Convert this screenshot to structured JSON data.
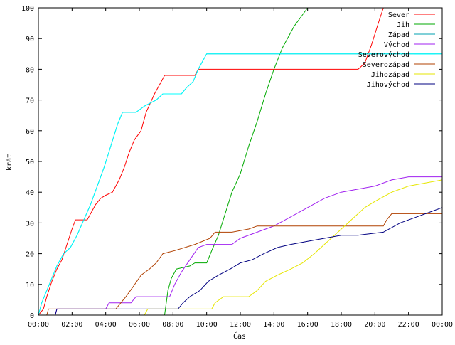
{
  "chart_data": {
    "type": "line",
    "title": "",
    "xlabel": "Čas",
    "ylabel": "krát",
    "xlim": [
      0,
      24
    ],
    "ylim": [
      0,
      100
    ],
    "x_ticks": [
      {
        "value": 0,
        "label": "00:00"
      },
      {
        "value": 2,
        "label": "02:00"
      },
      {
        "value": 4,
        "label": "04:00"
      },
      {
        "value": 6,
        "label": "06:00"
      },
      {
        "value": 8,
        "label": "08:00"
      },
      {
        "value": 10,
        "label": "10:00"
      },
      {
        "value": 12,
        "label": "12:00"
      },
      {
        "value": 14,
        "label": "14:00"
      },
      {
        "value": 16,
        "label": "16:00"
      },
      {
        "value": 18,
        "label": "18:00"
      },
      {
        "value": 20,
        "label": "20:00"
      },
      {
        "value": 22,
        "label": "22:00"
      },
      {
        "value": 24,
        "label": "00:00"
      }
    ],
    "y_ticks": [
      {
        "value": 0,
        "label": "0"
      },
      {
        "value": 10,
        "label": "10"
      },
      {
        "value": 20,
        "label": "20"
      },
      {
        "value": 30,
        "label": "30"
      },
      {
        "value": 40,
        "label": "40"
      },
      {
        "value": 50,
        "label": "50"
      },
      {
        "value": 60,
        "label": "60"
      },
      {
        "value": 70,
        "label": "70"
      },
      {
        "value": 80,
        "label": "80"
      },
      {
        "value": 90,
        "label": "90"
      },
      {
        "value": 100,
        "label": "100"
      }
    ],
    "grid": false,
    "legend_position": "top-right",
    "series": [
      {
        "name": "Sever",
        "color": "#ff0000",
        "points": [
          [
            0,
            0
          ],
          [
            0.3,
            2
          ],
          [
            0.5,
            6
          ],
          [
            0.8,
            11
          ],
          [
            1.1,
            15
          ],
          [
            1.4,
            18
          ],
          [
            1.7,
            23
          ],
          [
            2.0,
            28
          ],
          [
            2.2,
            31
          ],
          [
            2.9,
            31
          ],
          [
            3.1,
            33
          ],
          [
            3.4,
            36
          ],
          [
            3.7,
            38
          ],
          [
            4.0,
            39
          ],
          [
            4.4,
            40
          ],
          [
            4.8,
            44
          ],
          [
            5.1,
            48
          ],
          [
            5.4,
            53
          ],
          [
            5.7,
            57
          ],
          [
            6.1,
            60
          ],
          [
            6.4,
            66
          ],
          [
            6.9,
            72
          ],
          [
            7.3,
            76
          ],
          [
            7.5,
            78
          ],
          [
            9.3,
            78
          ],
          [
            9.5,
            80
          ],
          [
            19.0,
            80
          ],
          [
            19.4,
            82
          ],
          [
            19.8,
            88
          ],
          [
            20.2,
            95
          ],
          [
            20.5,
            100
          ]
        ]
      },
      {
        "name": "Jih",
        "color": "#00aa00",
        "points": [
          [
            0,
            0
          ],
          [
            7.5,
            0
          ],
          [
            7.7,
            8
          ],
          [
            7.9,
            12
          ],
          [
            8.2,
            15
          ],
          [
            9.0,
            16
          ],
          [
            9.3,
            17
          ],
          [
            10.0,
            17
          ],
          [
            10.3,
            21
          ],
          [
            10.7,
            26
          ],
          [
            11.1,
            33
          ],
          [
            11.5,
            40
          ],
          [
            12.0,
            46
          ],
          [
            12.5,
            55
          ],
          [
            13.0,
            63
          ],
          [
            13.5,
            72
          ],
          [
            14.0,
            80
          ],
          [
            14.5,
            87
          ],
          [
            14.8,
            90
          ],
          [
            15.2,
            94
          ],
          [
            15.6,
            97
          ],
          [
            16.0,
            100
          ]
        ]
      },
      {
        "name": "Západ",
        "color": "#00a0b0",
        "points": [
          [
            0,
            0
          ],
          [
            0.2,
            4
          ],
          [
            0.5,
            8
          ],
          [
            0.8,
            12
          ],
          [
            1.1,
            16
          ],
          [
            1.5,
            20
          ],
          [
            1.9,
            22
          ],
          [
            2.3,
            26
          ],
          [
            2.7,
            31
          ],
          [
            3.1,
            36
          ],
          [
            3.5,
            42
          ],
          [
            3.9,
            48
          ],
          [
            4.3,
            55
          ],
          [
            4.7,
            62
          ],
          [
            5.0,
            66
          ],
          [
            5.8,
            66
          ],
          [
            6.3,
            68
          ],
          [
            7.0,
            70
          ],
          [
            7.4,
            72
          ],
          [
            8.5,
            72
          ],
          [
            8.8,
            74
          ],
          [
            9.2,
            76
          ],
          [
            9.5,
            80
          ],
          [
            9.8,
            83
          ],
          [
            10.0,
            85
          ],
          [
            24,
            85
          ]
        ]
      },
      {
        "name": "Východ",
        "color": "#a020f0",
        "points": [
          [
            0,
            0
          ],
          [
            1.0,
            0
          ],
          [
            1.1,
            2
          ],
          [
            4.0,
            2
          ],
          [
            4.2,
            4
          ],
          [
            5.5,
            4
          ],
          [
            5.8,
            6
          ],
          [
            7.8,
            6
          ],
          [
            8.1,
            10
          ],
          [
            8.5,
            14
          ],
          [
            9.0,
            18
          ],
          [
            9.5,
            22
          ],
          [
            10.0,
            23
          ],
          [
            11.5,
            23
          ],
          [
            12.0,
            25
          ],
          [
            13.0,
            27
          ],
          [
            14.0,
            29
          ],
          [
            15.0,
            32
          ],
          [
            16.0,
            35
          ],
          [
            17.0,
            38
          ],
          [
            18.0,
            40
          ],
          [
            19.0,
            41
          ],
          [
            20.0,
            42
          ],
          [
            21.0,
            44
          ],
          [
            22.0,
            45
          ],
          [
            24,
            45
          ]
        ]
      },
      {
        "name": "Severovýchod",
        "color": "#00ffff",
        "points": [
          [
            0,
            0
          ],
          [
            0.2,
            4
          ],
          [
            0.5,
            8
          ],
          [
            0.8,
            12
          ],
          [
            1.1,
            16
          ],
          [
            1.5,
            20
          ],
          [
            1.9,
            22
          ],
          [
            2.3,
            26
          ],
          [
            2.7,
            31
          ],
          [
            3.1,
            36
          ],
          [
            3.5,
            42
          ],
          [
            3.9,
            48
          ],
          [
            4.3,
            55
          ],
          [
            4.7,
            62
          ],
          [
            5.0,
            66
          ],
          [
            5.8,
            66
          ],
          [
            6.3,
            68
          ],
          [
            7.0,
            70
          ],
          [
            7.4,
            72
          ],
          [
            8.5,
            72
          ],
          [
            8.8,
            74
          ],
          [
            9.2,
            76
          ],
          [
            9.5,
            80
          ],
          [
            9.8,
            83
          ],
          [
            10.0,
            85
          ],
          [
            24,
            85
          ]
        ]
      },
      {
        "name": "Severozápad",
        "color": "#b04000",
        "points": [
          [
            0,
            0
          ],
          [
            0.5,
            0
          ],
          [
            0.6,
            2
          ],
          [
            4.6,
            2
          ],
          [
            4.9,
            4
          ],
          [
            5.2,
            6
          ],
          [
            5.6,
            9
          ],
          [
            6.1,
            13
          ],
          [
            6.6,
            15
          ],
          [
            7.0,
            17
          ],
          [
            7.4,
            20
          ],
          [
            8.1,
            21
          ],
          [
            8.7,
            22
          ],
          [
            9.3,
            23
          ],
          [
            10.2,
            25
          ],
          [
            10.5,
            27
          ],
          [
            11.5,
            27
          ],
          [
            12.5,
            28
          ],
          [
            13.0,
            29
          ],
          [
            20.5,
            29
          ],
          [
            20.7,
            31
          ],
          [
            21.0,
            33
          ],
          [
            24,
            33
          ]
        ]
      },
      {
        "name": "Jihozápad",
        "color": "#e6e600",
        "points": [
          [
            0,
            0
          ],
          [
            6.3,
            0
          ],
          [
            6.5,
            2
          ],
          [
            10.3,
            2
          ],
          [
            10.5,
            4
          ],
          [
            11.0,
            6
          ],
          [
            12.5,
            6
          ],
          [
            13.0,
            8
          ],
          [
            13.5,
            11
          ],
          [
            14.2,
            13
          ],
          [
            15.0,
            15
          ],
          [
            15.7,
            17
          ],
          [
            16.4,
            20
          ],
          [
            17.0,
            23
          ],
          [
            17.6,
            26
          ],
          [
            18.2,
            29
          ],
          [
            18.8,
            32
          ],
          [
            19.4,
            35
          ],
          [
            20.0,
            37
          ],
          [
            21.0,
            40
          ],
          [
            22.0,
            42
          ],
          [
            23.0,
            43
          ],
          [
            24,
            44
          ]
        ]
      },
      {
        "name": "Jihovýchod",
        "color": "#000080",
        "points": [
          [
            0,
            0
          ],
          [
            1.0,
            0
          ],
          [
            1.1,
            2
          ],
          [
            8.3,
            2
          ],
          [
            8.6,
            4
          ],
          [
            9.0,
            6
          ],
          [
            9.6,
            8
          ],
          [
            10.1,
            11
          ],
          [
            10.7,
            13
          ],
          [
            11.4,
            15
          ],
          [
            12.0,
            17
          ],
          [
            12.7,
            18
          ],
          [
            13.4,
            20
          ],
          [
            14.2,
            22
          ],
          [
            15.0,
            23
          ],
          [
            16.0,
            24
          ],
          [
            17.0,
            25
          ],
          [
            18.0,
            26
          ],
          [
            19.0,
            26
          ],
          [
            20.5,
            27
          ],
          [
            21.5,
            30
          ],
          [
            22.5,
            32
          ],
          [
            23.5,
            34
          ],
          [
            24,
            35
          ]
        ]
      }
    ]
  }
}
